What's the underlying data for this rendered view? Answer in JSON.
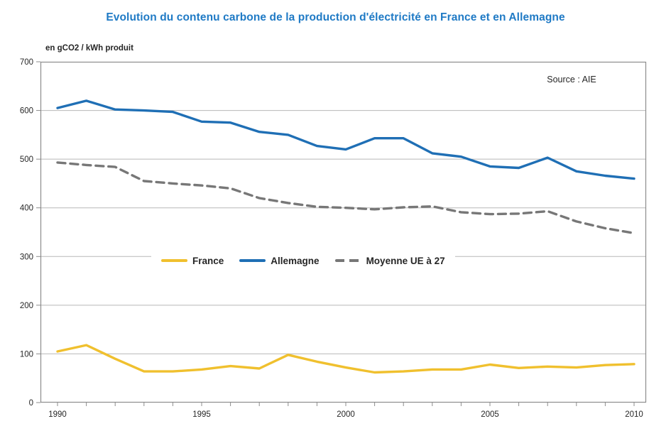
{
  "title": "Evolution du contenu carbone de la production d'électricité en France et en Allemagne",
  "unit_label": "en gCO2 / kWh produit",
  "source_label": "Source : AIE",
  "colors": {
    "title": "#1F7AC5",
    "france": "#F0C02E",
    "allemagne": "#1F6FB5",
    "moyenne_ue": "#777777",
    "grid": "#b8b8b8",
    "border": "#8c8c8c",
    "tick_text": "#262626"
  },
  "chart_data": {
    "type": "line",
    "title": "Evolution du contenu carbone de la production d'électricité en France et en Allemagne",
    "ylabel": "en gCO2 / kWh produit",
    "xlabel": "",
    "ylim": [
      0,
      700
    ],
    "yticks": [
      0,
      100,
      200,
      300,
      400,
      500,
      600,
      700
    ],
    "xticks": [
      1990,
      1995,
      2000,
      2005,
      2010
    ],
    "grid": true,
    "legend_position": "center-inside",
    "annotation": "Source : AIE",
    "x": [
      1990,
      1991,
      1992,
      1993,
      1994,
      1995,
      1996,
      1997,
      1998,
      1999,
      2000,
      2001,
      2002,
      2003,
      2004,
      2005,
      2006,
      2007,
      2008,
      2009,
      2010
    ],
    "series": [
      {
        "name": "France",
        "color": "#F0C02E",
        "style": "solid",
        "values": [
          105,
          118,
          90,
          64,
          64,
          68,
          75,
          70,
          98,
          84,
          72,
          62,
          64,
          68,
          68,
          78,
          71,
          74,
          72,
          77,
          79
        ]
      },
      {
        "name": "Allemagne",
        "color": "#1F6FB5",
        "style": "solid",
        "values": [
          605,
          620,
          602,
          600,
          597,
          577,
          575,
          556,
          550,
          527,
          520,
          543,
          543,
          512,
          505,
          485,
          482,
          503,
          475,
          466,
          460
        ]
      },
      {
        "name": "Moyenne UE à 27",
        "color": "#777777",
        "style": "dashed",
        "values": [
          493,
          488,
          484,
          455,
          450,
          446,
          440,
          420,
          410,
          402,
          400,
          397,
          401,
          403,
          391,
          387,
          388,
          393,
          372,
          358,
          348
        ]
      }
    ]
  }
}
